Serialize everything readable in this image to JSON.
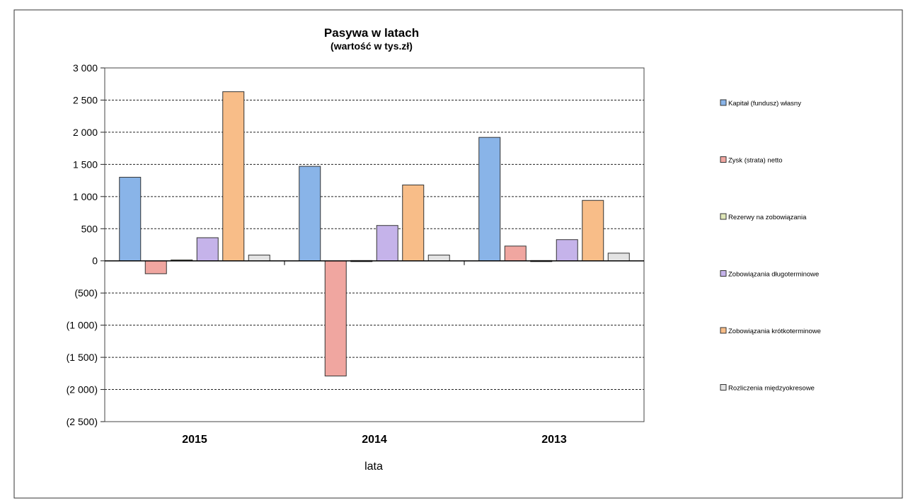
{
  "chart_data": {
    "type": "bar",
    "title": "Pasywa w latach",
    "subtitle": "(wartość w tys.zł)",
    "xlabel": "lata",
    "ylabel": "",
    "categories": [
      "2015",
      "2014",
      "2013"
    ],
    "ylim": [
      -2500,
      3000
    ],
    "yticks": [
      3000,
      2500,
      2000,
      1500,
      1000,
      500,
      0,
      -500,
      -1000,
      -1500,
      -2000,
      -2500
    ],
    "ytick_labels": [
      "3 000",
      "2 500",
      "2 000",
      "1 500",
      "1 000",
      "500",
      "0",
      "(500)",
      "(1 000)",
      "(1 500)",
      "(2 000)",
      "(2 500)"
    ],
    "grid": true,
    "legend_position": "right",
    "series": [
      {
        "name": "Kapitał (fundusz) własny",
        "color": "#89b4e8",
        "values": [
          1300,
          1470,
          1920
        ]
      },
      {
        "name": "Zysk (strata) netto",
        "color": "#f0a6a0",
        "values": [
          -200,
          -1790,
          230
        ]
      },
      {
        "name": "Rezerwy na zobowiązania",
        "color": "#dfe7b8",
        "values": [
          15,
          5,
          5
        ]
      },
      {
        "name": "Zobowiązania długoterminowe",
        "color": "#c5b3ea",
        "values": [
          360,
          550,
          330
        ]
      },
      {
        "name": "Zobowiązania krótkoterminowe",
        "color": "#f8bd88",
        "values": [
          2630,
          1180,
          940
        ]
      },
      {
        "name": "Rozliczenia międzyokresowe",
        "color": "#e3e3e3",
        "values": [
          90,
          90,
          120
        ]
      }
    ]
  }
}
